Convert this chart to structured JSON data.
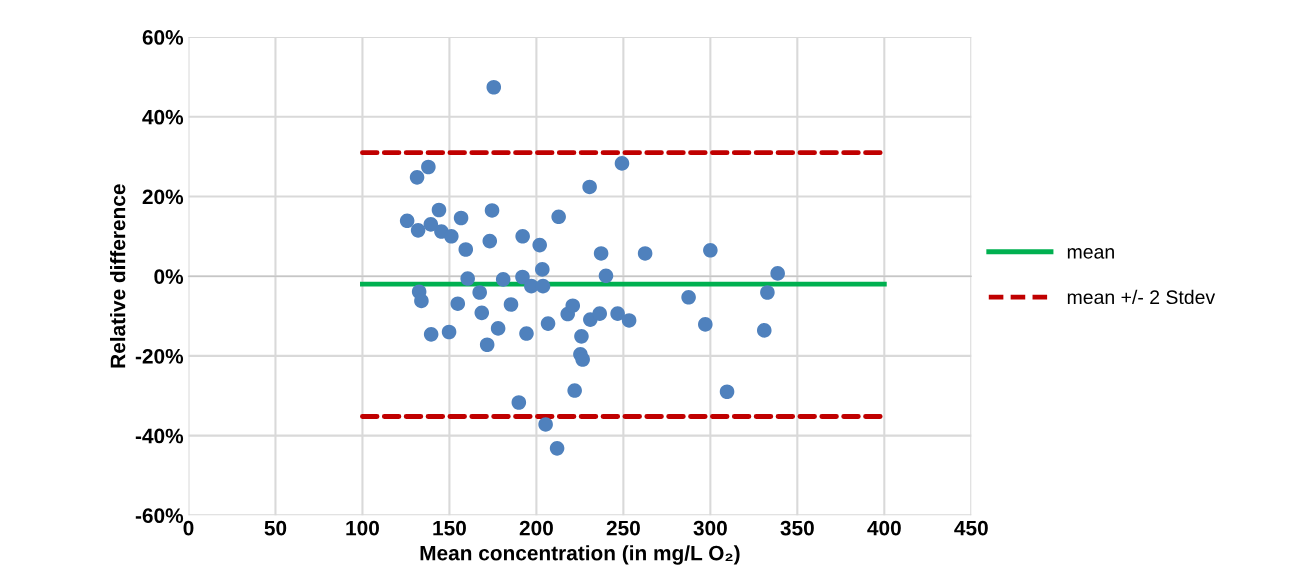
{
  "chart_data": {
    "type": "scatter",
    "xlabel": "Mean concentration (in mg/L O₂)",
    "ylabel": "Relative difference",
    "xlim": [
      0,
      450
    ],
    "xticks": [
      0,
      50,
      100,
      150,
      200,
      250,
      300,
      350,
      400,
      450
    ],
    "ylim": [
      -60,
      60
    ],
    "yticks": [
      {
        "value": -60,
        "label": "-60%"
      },
      {
        "value": -40,
        "label": "-40%"
      },
      {
        "value": -20,
        "label": "-20%"
      },
      {
        "value": 0,
        "label": "0%"
      },
      {
        "value": 20,
        "label": "20%"
      },
      {
        "value": 40,
        "label": "40%"
      },
      {
        "value": 60,
        "label": "60%"
      }
    ],
    "grid": true,
    "legend": "right",
    "marker": "circle",
    "series": [
      {
        "color": "#4f81bd",
        "x": [
          175.5,
          131.4,
          137.9,
          125.7,
          132,
          139.3,
          144,
          145.4,
          151.1,
          156.7,
          159.4,
          160.5,
          174.5,
          173.2,
          180.9,
          192.1,
          201.9,
          192,
          203.4,
          197.1,
          203.8,
          212.8,
          230.6,
          237.2,
          240,
          249.2,
          132.6,
          133.9,
          139.5,
          149.8,
          154.8,
          167.4,
          168.6,
          171.7,
          178,
          185.4,
          194.3,
          206.7,
          218,
          220.9,
          231,
          236.4,
          225.9,
          225.3,
          226.6,
          222,
          189.9,
          205.3,
          211.9,
          246.7,
          253.3,
          262.5,
          300,
          338.7,
          287.5,
          332.8,
          297.1,
          331,
          309.6
        ],
        "values": [
          47.4,
          24.8,
          27.4,
          13.9,
          11.5,
          13,
          16.6,
          11.2,
          10,
          14.6,
          6.7,
          -0.6,
          16.5,
          8.8,
          -0.8,
          10,
          7.8,
          -0.2,
          1.7,
          -2.5,
          -2.5,
          14.9,
          22.4,
          5.7,
          0.1,
          28.3,
          -3.9,
          -6.2,
          -14.6,
          -14,
          -6.9,
          -4.1,
          -9.2,
          -17.2,
          -13.1,
          -7.1,
          -14.4,
          -11.9,
          -9.5,
          -7.4,
          -10.9,
          -9.4,
          -15.1,
          -19.6,
          -20.9,
          -28.7,
          -31.7,
          -37.2,
          -43.2,
          -9.4,
          -11.1,
          5.7,
          6.5,
          0.7,
          -5.3,
          -4.1,
          -12.1,
          -13.6,
          -29
        ]
      },
      {
        "type": "line",
        "name": "mean",
        "color": "#00b050",
        "line_style": "solid",
        "marker": "none",
        "x": [
          100,
          400
        ],
        "values": [
          -2,
          -2
        ]
      },
      {
        "type": "line",
        "name": "mean +/- 2 Stdev",
        "color": "#c00000",
        "line_style": "dashed",
        "marker": "none",
        "x": [
          100,
          400
        ],
        "values": [
          31,
          31
        ]
      },
      {
        "type": "line",
        "color": "#c00000",
        "line_style": "dashed",
        "marker": "none",
        "x": [
          100,
          400
        ],
        "values": [
          -35.2,
          -35.2
        ]
      }
    ]
  }
}
